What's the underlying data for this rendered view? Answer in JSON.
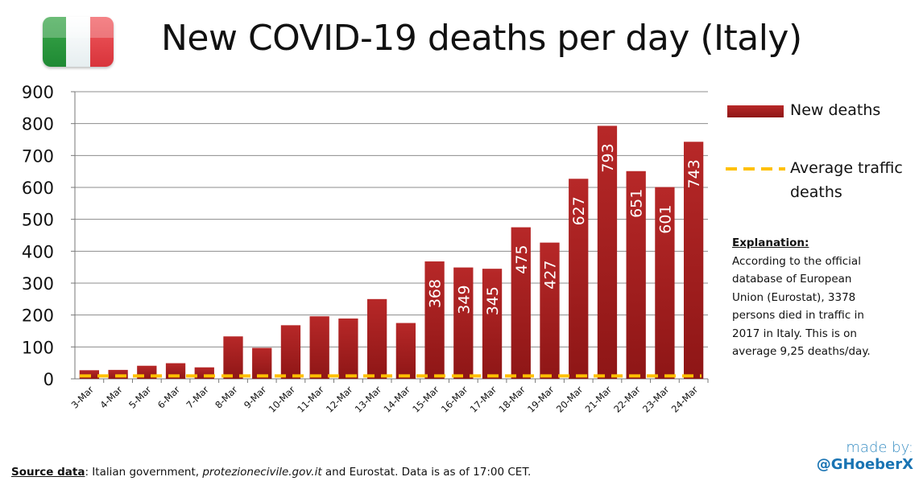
{
  "header": {
    "title": "New COVID-19 deaths per day (Italy)"
  },
  "legend": {
    "new_deaths": "New deaths",
    "traffic_line1": "Average traffic",
    "traffic_line2": "deaths"
  },
  "explanation": {
    "heading": "Explanation:",
    "line1": "According to the official",
    "line2": "database of European",
    "line3": "Union (Eurostat), 3378",
    "line4": "persons died in traffic in",
    "line5": "2017 in Italy. This is on",
    "line6": "average 9,25 deaths/day."
  },
  "credit": {
    "line1": "made by:",
    "line2": "@GHoeberX"
  },
  "source": {
    "label": "Source data",
    "colon": ": Italian government, ",
    "site": "protezionecivile.gov.it",
    "rest": "  and Eurostat. Data is as of 17:00 CET."
  },
  "colors": {
    "bar": "#a81f1f",
    "bar_light": "#c23434",
    "traffic_line": "#ffc000",
    "grid": "#8c8c8c"
  },
  "chart_data": {
    "type": "bar",
    "title": "New COVID-19 deaths per day (Italy)",
    "xlabel": "",
    "ylabel": "",
    "ylim": [
      0,
      900
    ],
    "yticks": [
      0,
      100,
      200,
      300,
      400,
      500,
      600,
      700,
      800,
      900
    ],
    "grid": true,
    "legend_position": "right",
    "categories": [
      "3-Mar",
      "4-Mar",
      "5-Mar",
      "6-Mar",
      "7-Mar",
      "8-Mar",
      "9-Mar",
      "10-Mar",
      "11-Mar",
      "12-Mar",
      "13-Mar",
      "14-Mar",
      "15-Mar",
      "16-Mar",
      "17-Mar",
      "18-Mar",
      "19-Mar",
      "20-Mar",
      "21-Mar",
      "22-Mar",
      "23-Mar",
      "24-Mar"
    ],
    "series": [
      {
        "name": "New deaths",
        "type": "bar",
        "values": [
          27,
          28,
          41,
          49,
          36,
          133,
          97,
          168,
          196,
          189,
          250,
          175,
          368,
          349,
          345,
          475,
          427,
          627,
          793,
          651,
          601,
          743
        ],
        "data_labels": [
          "",
          "",
          "",
          "",
          "",
          "",
          "",
          "",
          "",
          "",
          "",
          "",
          "368",
          "349",
          "345",
          "475",
          "427",
          "627",
          "793",
          "651",
          "601",
          "743"
        ]
      },
      {
        "name": "Average traffic deaths",
        "type": "line",
        "style": "dashed",
        "values": [
          9.25,
          9.25,
          9.25,
          9.25,
          9.25,
          9.25,
          9.25,
          9.25,
          9.25,
          9.25,
          9.25,
          9.25,
          9.25,
          9.25,
          9.25,
          9.25,
          9.25,
          9.25,
          9.25,
          9.25,
          9.25,
          9.25
        ]
      }
    ]
  }
}
